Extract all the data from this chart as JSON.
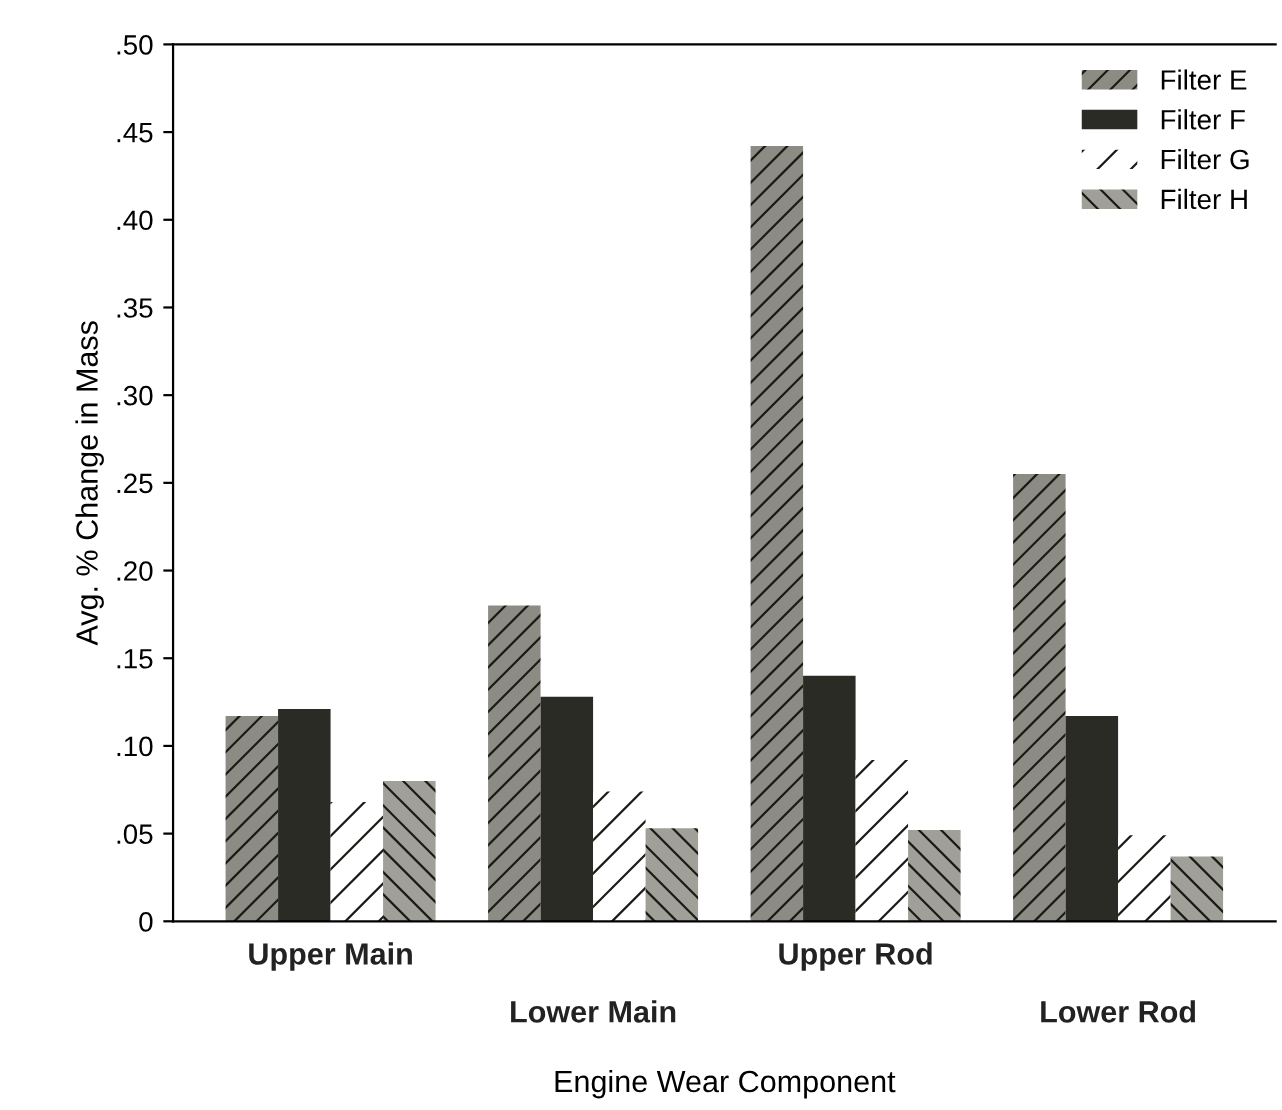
{
  "chart_data": {
    "type": "bar",
    "xlabel": "Engine Wear Component",
    "ylabel": "Avg. % Change in Mass",
    "categories": [
      "Upper Main",
      "Lower Main",
      "Upper Rod",
      "Lower Rod"
    ],
    "series": [
      {
        "name": "Filter E",
        "color": "#8c8c84",
        "values": [
          0.117,
          0.18,
          0.442,
          0.255
        ]
      },
      {
        "name": "Filter F",
        "color": "#2b2b25",
        "values": [
          0.121,
          0.128,
          0.14,
          0.117
        ]
      },
      {
        "name": "Filter G",
        "color": "#ffffff",
        "values": [
          0.068,
          0.074,
          0.092,
          0.049
        ]
      },
      {
        "name": "Filter H",
        "color": "#a0a098",
        "values": [
          0.08,
          0.053,
          0.052,
          0.037
        ]
      }
    ],
    "ylim": [
      0,
      0.5
    ],
    "yticks": [
      {
        "value": 0,
        "label": "0"
      },
      {
        "value": 0.05,
        "label": ".05"
      },
      {
        "value": 0.1,
        "label": ".10"
      },
      {
        "value": 0.15,
        "label": ".15"
      },
      {
        "value": 0.2,
        "label": ".20"
      },
      {
        "value": 0.25,
        "label": ".25"
      },
      {
        "value": 0.3,
        "label": ".30"
      },
      {
        "value": 0.35,
        "label": ".35"
      },
      {
        "value": 0.4,
        "label": ".40"
      },
      {
        "value": 0.45,
        "label": ".45"
      },
      {
        "value": 0.5,
        "label": ".50"
      }
    ],
    "grid": false,
    "legend": "top right"
  }
}
